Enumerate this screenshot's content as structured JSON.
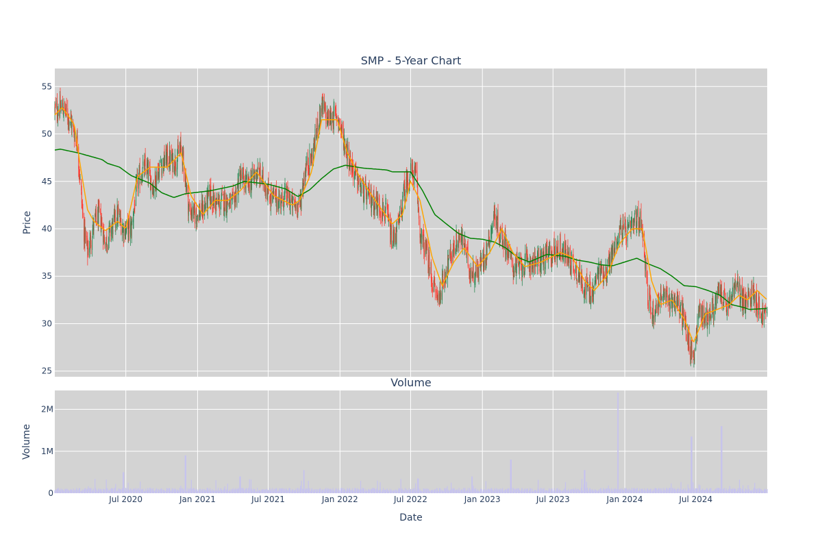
{
  "chart_data": [
    {
      "type": "candlestick",
      "title": "SMP - 5-Year Chart",
      "ylabel": "Price",
      "xlabel": "",
      "ylim": [
        24.4,
        56.9
      ],
      "xlim": [
        "2020-01-01",
        "2024-12-31"
      ],
      "y_ticks": [
        25,
        30,
        35,
        40,
        45,
        50,
        55
      ],
      "grid": true,
      "plot_background": "#d3d3d3",
      "increasing_color": "#2e8b57",
      "decreasing_color": "#ff3b30",
      "price_anchors": [
        [
          "2020-01-01",
          52.5
        ],
        [
          "2020-01-20",
          52.8
        ],
        [
          "2020-02-10",
          51.5
        ],
        [
          "2020-02-28",
          49.0
        ],
        [
          "2020-03-15",
          40.0
        ],
        [
          "2020-03-25",
          37.5
        ],
        [
          "2020-04-10",
          40.5
        ],
        [
          "2020-04-25",
          41.5
        ],
        [
          "2020-05-10",
          38.5
        ],
        [
          "2020-05-25",
          40.0
        ],
        [
          "2020-06-10",
          41.5
        ],
        [
          "2020-06-25",
          40.0
        ],
        [
          "2020-07-15",
          40.0
        ],
        [
          "2020-07-31",
          45.0
        ],
        [
          "2020-08-20",
          46.5
        ],
        [
          "2020-09-10",
          44.5
        ],
        [
          "2020-09-25",
          46.5
        ],
        [
          "2020-10-15",
          47.5
        ],
        [
          "2020-11-01",
          47.0
        ],
        [
          "2020-11-20",
          48.5
        ],
        [
          "2020-11-28",
          46.5
        ],
        [
          "2020-12-10",
          42.0
        ],
        [
          "2020-12-25",
          41.5
        ],
        [
          "2021-01-15",
          42.0
        ],
        [
          "2021-02-01",
          43.5
        ],
        [
          "2021-02-20",
          42.5
        ],
        [
          "2021-03-10",
          43.0
        ],
        [
          "2021-04-01",
          42.5
        ],
        [
          "2021-04-20",
          45.5
        ],
        [
          "2021-05-10",
          44.5
        ],
        [
          "2021-06-01",
          46.0
        ],
        [
          "2021-06-20",
          45.0
        ],
        [
          "2021-07-05",
          43.5
        ],
        [
          "2021-07-25",
          43.0
        ],
        [
          "2021-08-15",
          43.5
        ],
        [
          "2021-09-01",
          42.5
        ],
        [
          "2021-09-20",
          42.5
        ],
        [
          "2021-10-05",
          46.5
        ],
        [
          "2021-10-20",
          47.5
        ],
        [
          "2021-11-01",
          50.0
        ],
        [
          "2021-11-15",
          53.0
        ],
        [
          "2021-12-01",
          51.5
        ],
        [
          "2021-12-25",
          52.0
        ],
        [
          "2022-01-10",
          49.5
        ],
        [
          "2022-02-01",
          46.5
        ],
        [
          "2022-02-20",
          44.5
        ],
        [
          "2022-03-10",
          43.5
        ],
        [
          "2022-03-25",
          43.0
        ],
        [
          "2022-04-10",
          42.5
        ],
        [
          "2022-05-01",
          41.5
        ],
        [
          "2022-05-15",
          38.5
        ],
        [
          "2022-06-01",
          40.5
        ],
        [
          "2022-06-15",
          44.0
        ],
        [
          "2022-07-01",
          46.0
        ],
        [
          "2022-07-15",
          45.5
        ],
        [
          "2022-07-25",
          39.5
        ],
        [
          "2022-08-10",
          37.5
        ],
        [
          "2022-08-25",
          34.5
        ],
        [
          "2022-09-10",
          32.5
        ],
        [
          "2022-09-25",
          35.0
        ],
        [
          "2022-10-15",
          37.5
        ],
        [
          "2022-11-01",
          39.0
        ],
        [
          "2022-11-15",
          38.5
        ],
        [
          "2022-12-01",
          35.5
        ],
        [
          "2022-12-20",
          35.5
        ],
        [
          "2023-01-10",
          37.5
        ],
        [
          "2023-02-01",
          41.5
        ],
        [
          "2023-02-15",
          39.5
        ],
        [
          "2023-03-01",
          38.5
        ],
        [
          "2023-03-20",
          36.0
        ],
        [
          "2023-04-10",
          36.0
        ],
        [
          "2023-05-01",
          36.5
        ],
        [
          "2023-05-20",
          36.5
        ],
        [
          "2023-06-10",
          37.0
        ],
        [
          "2023-07-01",
          37.5
        ],
        [
          "2023-07-20",
          38.0
        ],
        [
          "2023-08-10",
          37.0
        ],
        [
          "2023-09-01",
          35.5
        ],
        [
          "2023-09-20",
          34.0
        ],
        [
          "2023-10-10",
          33.0
        ],
        [
          "2023-10-25",
          35.5
        ],
        [
          "2023-11-15",
          35.5
        ],
        [
          "2023-12-01",
          37.5
        ],
        [
          "2023-12-20",
          40.0
        ],
        [
          "2024-01-10",
          39.5
        ],
        [
          "2024-02-01",
          41.0
        ],
        [
          "2024-02-15",
          40.5
        ],
        [
          "2024-03-01",
          32.5
        ],
        [
          "2024-03-15",
          31.0
        ],
        [
          "2024-04-01",
          33.0
        ],
        [
          "2024-04-20",
          32.5
        ],
        [
          "2024-05-10",
          32.5
        ],
        [
          "2024-06-01",
          30.5
        ],
        [
          "2024-06-15",
          27.5
        ],
        [
          "2024-06-25",
          26.5
        ],
        [
          "2024-07-10",
          31.5
        ],
        [
          "2024-07-25",
          30.5
        ],
        [
          "2024-08-15",
          31.5
        ],
        [
          "2024-09-01",
          33.5
        ],
        [
          "2024-09-20",
          31.5
        ],
        [
          "2024-10-10",
          34.0
        ],
        [
          "2024-10-20",
          33.5
        ],
        [
          "2024-11-05",
          32.0
        ],
        [
          "2024-11-25",
          33.5
        ],
        [
          "2024-12-15",
          31.0
        ],
        [
          "2024-12-31",
          31.0
        ]
      ],
      "ma_short": [
        [
          "2020-01-01",
          52.0
        ],
        [
          "2020-01-20",
          52.8
        ],
        [
          "2020-02-20",
          51.0
        ],
        [
          "2020-03-05",
          47.0
        ],
        [
          "2020-03-25",
          42.0
        ],
        [
          "2020-04-10",
          40.8
        ],
        [
          "2020-05-10",
          39.8
        ],
        [
          "2020-06-10",
          40.8
        ],
        [
          "2020-07-01",
          40.0
        ],
        [
          "2020-07-31",
          45.5
        ],
        [
          "2020-09-01",
          46.5
        ],
        [
          "2020-10-15",
          46.5
        ],
        [
          "2020-11-20",
          48.0
        ],
        [
          "2020-12-15",
          43.5
        ],
        [
          "2021-01-15",
          41.5
        ],
        [
          "2021-02-15",
          43.0
        ],
        [
          "2021-03-20",
          43.0
        ],
        [
          "2021-04-20",
          44.0
        ],
        [
          "2021-06-01",
          46.0
        ],
        [
          "2021-07-15",
          43.5
        ],
        [
          "2021-09-01",
          42.5
        ],
        [
          "2021-09-20",
          43.0
        ],
        [
          "2021-10-20",
          46.0
        ],
        [
          "2021-11-15",
          51.5
        ],
        [
          "2021-12-25",
          51.5
        ],
        [
          "2022-01-20",
          48.0
        ],
        [
          "2022-02-20",
          45.5
        ],
        [
          "2022-04-01",
          43.0
        ],
        [
          "2022-05-15",
          40.5
        ],
        [
          "2022-06-10",
          41.5
        ],
        [
          "2022-07-01",
          45.0
        ],
        [
          "2022-07-25",
          43.0
        ],
        [
          "2022-08-25",
          37.0
        ],
        [
          "2022-09-20",
          34.0
        ],
        [
          "2022-10-20",
          36.5
        ],
        [
          "2022-11-15",
          38.0
        ],
        [
          "2022-12-20",
          36.0
        ],
        [
          "2023-01-20",
          37.5
        ],
        [
          "2023-02-20",
          40.0
        ],
        [
          "2023-03-20",
          37.5
        ],
        [
          "2023-04-20",
          36.0
        ],
        [
          "2023-06-01",
          36.5
        ],
        [
          "2023-07-20",
          37.5
        ],
        [
          "2023-08-20",
          37.0
        ],
        [
          "2023-09-20",
          34.5
        ],
        [
          "2023-10-15",
          33.5
        ],
        [
          "2023-11-15",
          35.0
        ],
        [
          "2023-12-20",
          38.5
        ],
        [
          "2024-01-20",
          40.0
        ],
        [
          "2024-02-15",
          40.0
        ],
        [
          "2024-03-10",
          34.5
        ],
        [
          "2024-04-01",
          32.0
        ],
        [
          "2024-05-01",
          32.5
        ],
        [
          "2024-06-01",
          30.5
        ],
        [
          "2024-06-25",
          28.0
        ],
        [
          "2024-07-25",
          31.0
        ],
        [
          "2024-08-25",
          31.5
        ],
        [
          "2024-09-25",
          32.0
        ],
        [
          "2024-10-20",
          33.0
        ],
        [
          "2024-11-10",
          32.5
        ],
        [
          "2024-12-05",
          33.5
        ],
        [
          "2024-12-31",
          32.5
        ]
      ],
      "ma_long": [
        [
          "2020-01-01",
          48.3
        ],
        [
          "2020-01-15",
          48.4
        ],
        [
          "2020-03-01",
          48.0
        ],
        [
          "2020-05-01",
          47.3
        ],
        [
          "2020-05-15",
          46.9
        ],
        [
          "2020-06-15",
          46.5
        ],
        [
          "2020-07-15",
          45.6
        ],
        [
          "2020-09-01",
          44.8
        ],
        [
          "2020-10-01",
          43.8
        ],
        [
          "2020-11-01",
          43.3
        ],
        [
          "2020-12-01",
          43.7
        ],
        [
          "2021-02-01",
          44.0
        ],
        [
          "2021-04-01",
          44.5
        ],
        [
          "2021-05-01",
          45.0
        ],
        [
          "2021-07-01",
          44.7
        ],
        [
          "2021-08-15",
          44.2
        ],
        [
          "2021-09-15",
          43.4
        ],
        [
          "2021-10-15",
          44.1
        ],
        [
          "2021-11-15",
          45.3
        ],
        [
          "2021-12-15",
          46.3
        ],
        [
          "2022-01-15",
          46.7
        ],
        [
          "2022-03-01",
          46.4
        ],
        [
          "2022-05-01",
          46.2
        ],
        [
          "2022-05-15",
          46.0
        ],
        [
          "2022-07-01",
          46.0
        ],
        [
          "2022-08-01",
          44.0
        ],
        [
          "2022-09-01",
          41.5
        ],
        [
          "2022-10-01",
          40.5
        ],
        [
          "2022-11-01",
          39.5
        ],
        [
          "2022-12-01",
          39.0
        ],
        [
          "2023-01-01",
          38.9
        ],
        [
          "2023-02-01",
          38.6
        ],
        [
          "2023-03-01",
          38.0
        ],
        [
          "2023-04-01",
          37.0
        ],
        [
          "2023-05-01",
          36.5
        ],
        [
          "2023-06-15",
          37.3
        ],
        [
          "2023-08-01",
          37.1
        ],
        [
          "2023-09-01",
          36.7
        ],
        [
          "2023-10-01",
          36.5
        ],
        [
          "2023-11-01",
          36.2
        ],
        [
          "2023-12-01",
          36.1
        ],
        [
          "2024-01-01",
          36.5
        ],
        [
          "2024-02-01",
          36.9
        ],
        [
          "2024-03-01",
          36.3
        ],
        [
          "2024-04-01",
          35.8
        ],
        [
          "2024-05-01",
          35.0
        ],
        [
          "2024-06-01",
          34.0
        ],
        [
          "2024-07-01",
          33.9
        ],
        [
          "2024-08-01",
          33.5
        ],
        [
          "2024-09-01",
          33.0
        ],
        [
          "2024-10-01",
          32.0
        ],
        [
          "2024-11-01",
          31.7
        ],
        [
          "2024-11-15",
          31.5
        ],
        [
          "2024-12-31",
          31.6
        ]
      ],
      "ma_short_color": "#ffa500",
      "ma_long_color": "#008000"
    },
    {
      "type": "bar",
      "title": "Volume",
      "xlabel": "Date",
      "ylabel": "Volume",
      "ylim": [
        0,
        2450000
      ],
      "y_ticks": [
        0,
        1000000,
        2000000
      ],
      "y_tick_labels": [
        "0",
        "1M",
        "2M"
      ],
      "x_ticks": [
        "2020-07-01",
        "2021-01-01",
        "2021-07-01",
        "2022-01-01",
        "2022-07-01",
        "2023-01-01",
        "2023-07-01",
        "2024-01-01",
        "2024-07-01"
      ],
      "x_tick_labels": [
        "Jul 2020",
        "Jan 2021",
        "Jul 2021",
        "Jan 2022",
        "Jul 2022",
        "Jan 2023",
        "Jul 2023",
        "Jan 2024",
        "Jul 2024"
      ],
      "grid": true,
      "plot_background": "#d3d3d3",
      "bar_color": "#c6c3ee",
      "baseline_volume": 100000,
      "volume_spikes": [
        [
          "2020-06-25",
          500000
        ],
        [
          "2020-12-01",
          900000
        ],
        [
          "2021-04-20",
          400000
        ],
        [
          "2021-10-01",
          550000
        ],
        [
          "2022-07-20",
          350000
        ],
        [
          "2022-12-05",
          400000
        ],
        [
          "2023-03-15",
          800000
        ],
        [
          "2023-09-20",
          550000
        ],
        [
          "2023-12-15",
          2400000
        ],
        [
          "2024-06-20",
          1350000
        ],
        [
          "2024-09-05",
          1600000
        ]
      ]
    }
  ]
}
